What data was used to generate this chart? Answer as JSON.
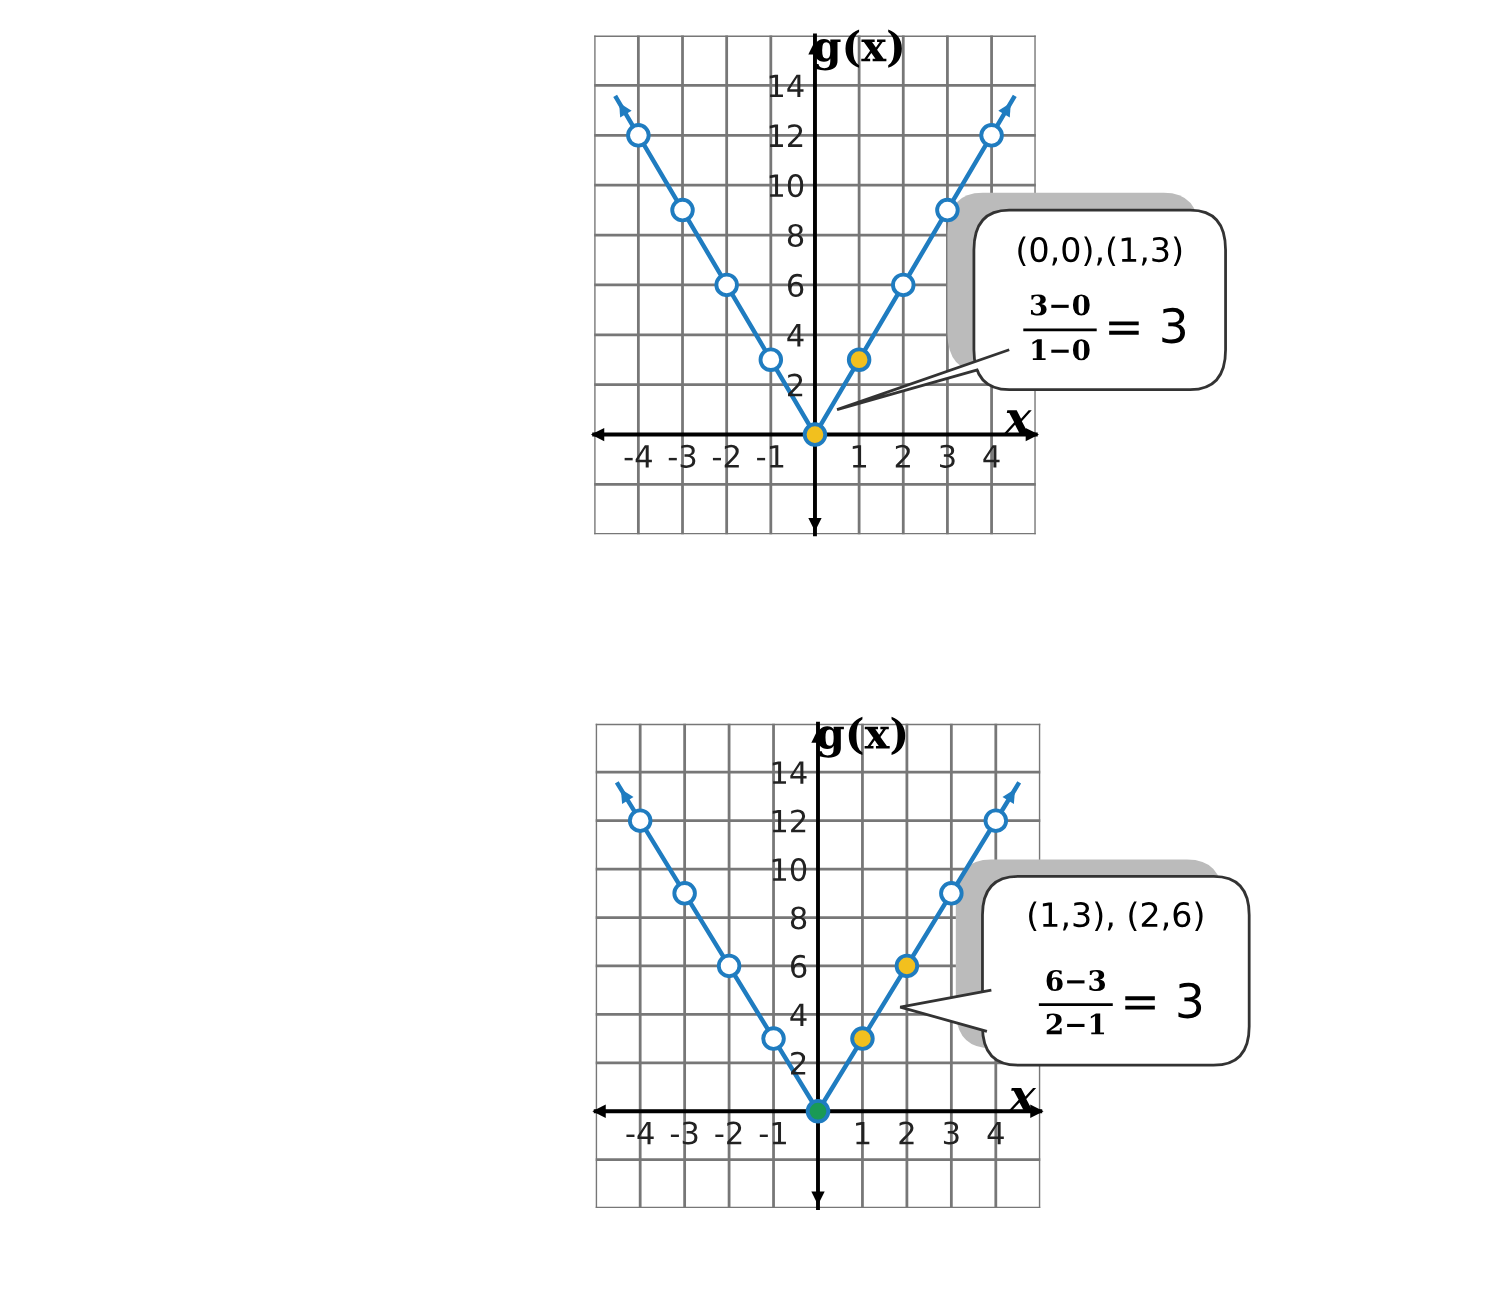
{
  "chart_data": [
    {
      "type": "line",
      "xlabel": "x",
      "ylabel": "g(x)",
      "xlim": [
        -5,
        5
      ],
      "ylim": [
        -4,
        16
      ],
      "xticks": [
        {
          "value": -5,
          "label": null
        },
        -4,
        -3,
        -2,
        -1,
        {
          "value": 0,
          "label": null
        },
        1,
        2,
        3,
        4,
        {
          "value": 5,
          "label": null
        }
      ],
      "yticks": [
        {
          "value": -4,
          "label": null
        },
        {
          "value": -2,
          "label": null
        },
        {
          "value": 0,
          "label": null
        },
        2,
        4,
        6,
        8,
        10,
        12,
        14,
        {
          "value": 16,
          "label": null
        }
      ],
      "grid": true,
      "series": [
        {
          "type": "line",
          "color": "#1f7cc0",
          "x": [
            -4.5,
            0,
            4.5
          ],
          "values": [
            13.5,
            0,
            13.5
          ]
        },
        {
          "type": "scatter",
          "color": "#ffffff",
          "x": [
            -4,
            -3,
            -2,
            -1,
            0,
            1,
            2,
            3,
            4
          ],
          "values": [
            12,
            9,
            6,
            3,
            null,
            null,
            6,
            9,
            12
          ]
        },
        {
          "type": "scatter",
          "color": "#f2c01e",
          "x": [
            0,
            1
          ],
          "values": [
            0,
            3
          ]
        }
      ],
      "annotations": [
        "(0,0),(1,3)",
        "3−0",
        "1−0",
        "= 3"
      ]
    },
    {
      "type": "line",
      "xlabel": "x",
      "ylabel": "g(x)",
      "xlim": [
        -5,
        5
      ],
      "ylim": [
        -4,
        16
      ],
      "xticks": [
        {
          "value": -5,
          "label": null
        },
        -4,
        -3,
        -2,
        -1,
        {
          "value": 0,
          "label": null
        },
        1,
        2,
        3,
        4,
        {
          "value": 5,
          "label": null
        }
      ],
      "yticks": [
        {
          "value": -4,
          "label": null
        },
        {
          "value": -2,
          "label": null
        },
        {
          "value": 0,
          "label": null
        },
        2,
        4,
        6,
        8,
        10,
        12,
        14,
        {
          "value": 16,
          "label": null
        }
      ],
      "grid": true,
      "series": [
        {
          "type": "line",
          "color": "#1f7cc0",
          "x": [
            -4.5,
            0,
            4.5
          ],
          "values": [
            13.5,
            0,
            13.5
          ]
        },
        {
          "type": "scatter",
          "color": "#ffffff",
          "x": [
            -4,
            -3,
            -2,
            -1,
            0,
            1,
            2,
            3,
            4
          ],
          "values": [
            12,
            9,
            6,
            3,
            null,
            null,
            null,
            9,
            12
          ]
        },
        {
          "type": "scatter",
          "color": "#1a9a55",
          "x": [
            0
          ],
          "values": [
            0
          ]
        },
        {
          "type": "scatter",
          "color": "#f2c01e",
          "x": [
            1,
            2
          ],
          "values": [
            3,
            6
          ]
        }
      ],
      "annotations": [
        "(1,3), (2,6)",
        "6−3",
        "2−1",
        "= 3"
      ]
    }
  ]
}
